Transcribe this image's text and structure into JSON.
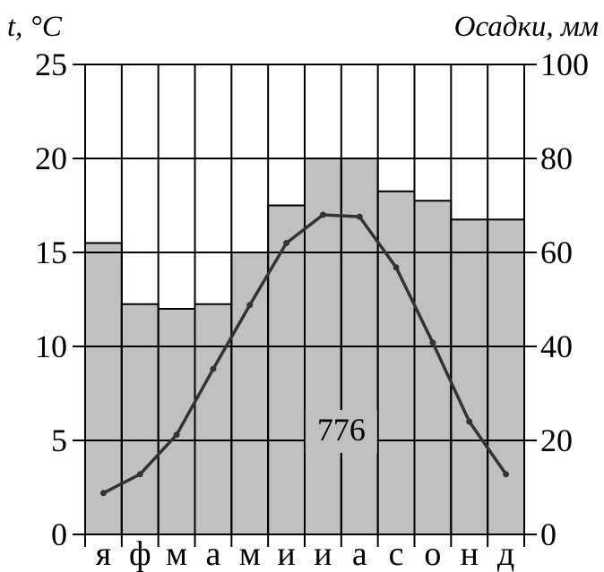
{
  "chart_data": {
    "type": "climatogram",
    "left_axis": {
      "label": "t, °C",
      "min": 0,
      "max": 25,
      "ticks": [
        "0",
        "5",
        "10",
        "15",
        "20",
        "25"
      ]
    },
    "right_axis": {
      "label": "Осадки, мм",
      "min": 0,
      "max": 100,
      "ticks": [
        "0",
        "20",
        "40",
        "60",
        "80",
        "100"
      ]
    },
    "categories": [
      "я",
      "ф",
      "м",
      "а",
      "м",
      "и",
      "и",
      "а",
      "с",
      "о",
      "н",
      "д"
    ],
    "precipitation_mm": [
      62,
      49,
      48,
      49,
      60,
      70,
      80,
      80,
      73,
      71,
      67,
      67
    ],
    "temperature_c": [
      2.2,
      3.2,
      5.3,
      8.8,
      12.2,
      15.5,
      17.0,
      16.9,
      14.2,
      10.2,
      6.0,
      3.2
    ],
    "annual_precipitation": "776",
    "grid": "horizontal and vertical",
    "colors": {
      "bars": "#c0c0c0",
      "line": "#333333",
      "grid": "#000000"
    }
  }
}
